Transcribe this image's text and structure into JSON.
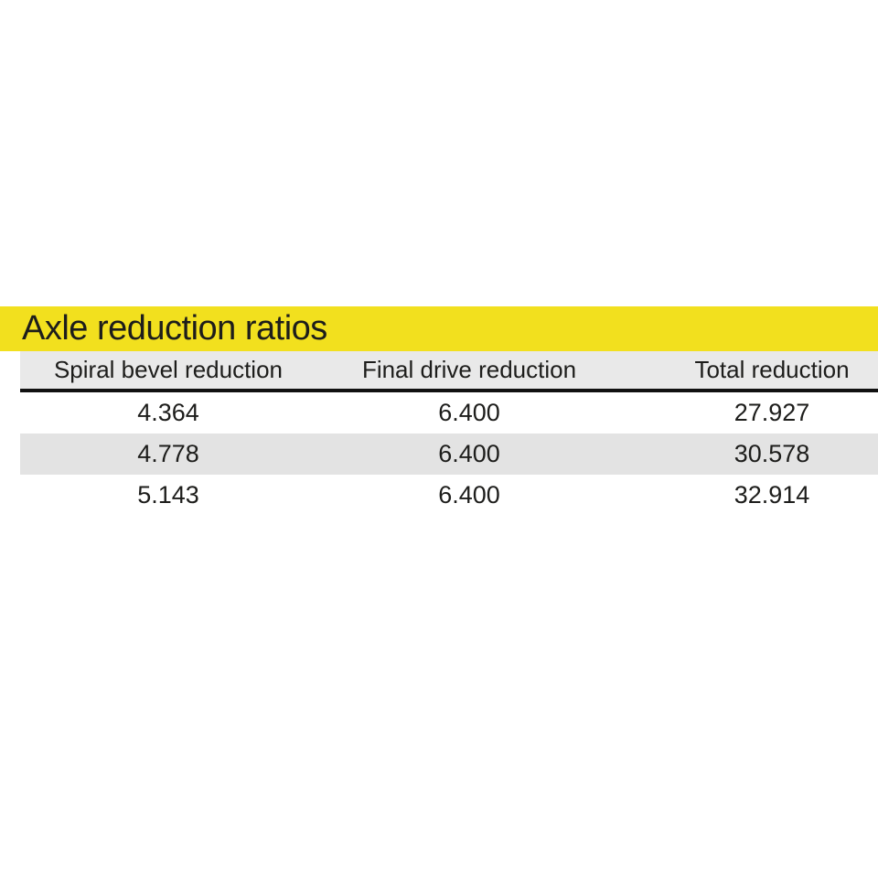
{
  "title": "Axle reduction ratios",
  "colors": {
    "accent_yellow": "#f2e01e",
    "header_gray": "#e9e9e9",
    "row_stripe_gray": "#e3e3e3",
    "text": "#1d1d1b",
    "rule_black": "#111111"
  },
  "table": {
    "columns": [
      "Spiral bevel reduction",
      "Final drive reduction",
      "Total reduction"
    ],
    "rows": [
      [
        "4.364",
        "6.400",
        "27.927"
      ],
      [
        "4.778",
        "6.400",
        "30.578"
      ],
      [
        "5.143",
        "6.400",
        "32.914"
      ]
    ]
  }
}
